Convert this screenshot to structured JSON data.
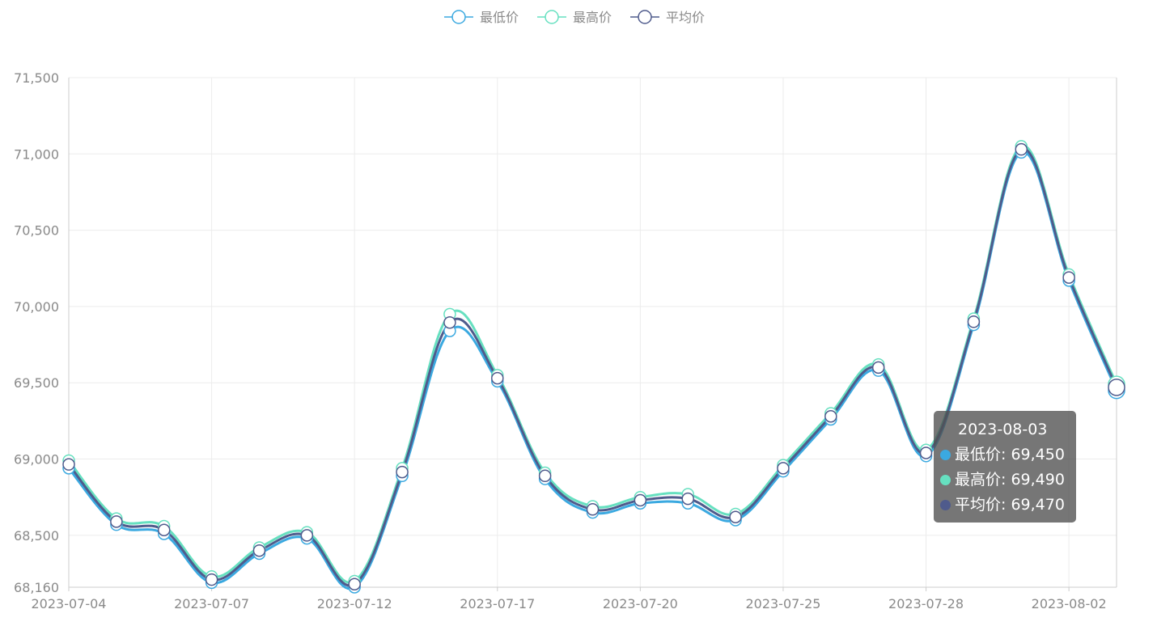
{
  "chart_data": {
    "type": "line",
    "smooth": true,
    "x": [
      "2023-07-04",
      "2023-07-05",
      "2023-07-06",
      "2023-07-07",
      "2023-07-10",
      "2023-07-11",
      "2023-07-12",
      "2023-07-13",
      "2023-07-14",
      "2023-07-17",
      "2023-07-18",
      "2023-07-19",
      "2023-07-20",
      "2023-07-21",
      "2023-07-24",
      "2023-07-25",
      "2023-07-26",
      "2023-07-27",
      "2023-07-28",
      "2023-07-31",
      "2023-08-01",
      "2023-08-02",
      "2023-08-03"
    ],
    "xtick_labels": [
      "2023-07-04",
      "2023-07-07",
      "2023-07-12",
      "2023-07-17",
      "2023-07-20",
      "2023-07-25",
      "2023-07-28",
      "2023-08-02"
    ],
    "ytick_labels": [
      "68,160",
      "68,500",
      "69,000",
      "69,500",
      "70,000",
      "70,500",
      "71,000",
      "71,500"
    ],
    "yticks": [
      68160,
      68500,
      69000,
      69500,
      70000,
      70500,
      71000,
      71500
    ],
    "ylim": [
      68160,
      71500
    ],
    "grid": true,
    "legend_position": "top-center",
    "series": [
      {
        "name": "最低价",
        "color": "#3ba9e0",
        "values": [
          68940,
          68570,
          68510,
          68190,
          68380,
          68480,
          68160,
          68890,
          69840,
          69510,
          68870,
          68650,
          68710,
          68710,
          68600,
          68920,
          69260,
          69580,
          69020,
          69880,
          71010,
          70170,
          69450
        ]
      },
      {
        "name": "最高价",
        "color": "#66e0c0",
        "values": [
          68990,
          68610,
          68560,
          68230,
          68420,
          68520,
          68200,
          68940,
          69950,
          69550,
          68910,
          68690,
          68750,
          68770,
          68640,
          68960,
          69300,
          69620,
          69060,
          69920,
          71050,
          70210,
          69490
        ]
      },
      {
        "name": "平均价",
        "color": "#4f5b8c",
        "values": [
          68965,
          68590,
          68535,
          68210,
          68400,
          68500,
          68180,
          68915,
          69895,
          69530,
          68890,
          68670,
          68730,
          68740,
          68620,
          68940,
          69280,
          69600,
          69040,
          69900,
          71030,
          70190,
          69470
        ]
      }
    ]
  },
  "tooltip": {
    "title": "2023-08-03",
    "rows": [
      {
        "label": "最低价: 69,450",
        "color": "#3ba9e0"
      },
      {
        "label": "最高价: 69,490",
        "color": "#66e0c0"
      },
      {
        "label": "平均价: 69,470",
        "color": "#4f5b8c"
      }
    ]
  }
}
